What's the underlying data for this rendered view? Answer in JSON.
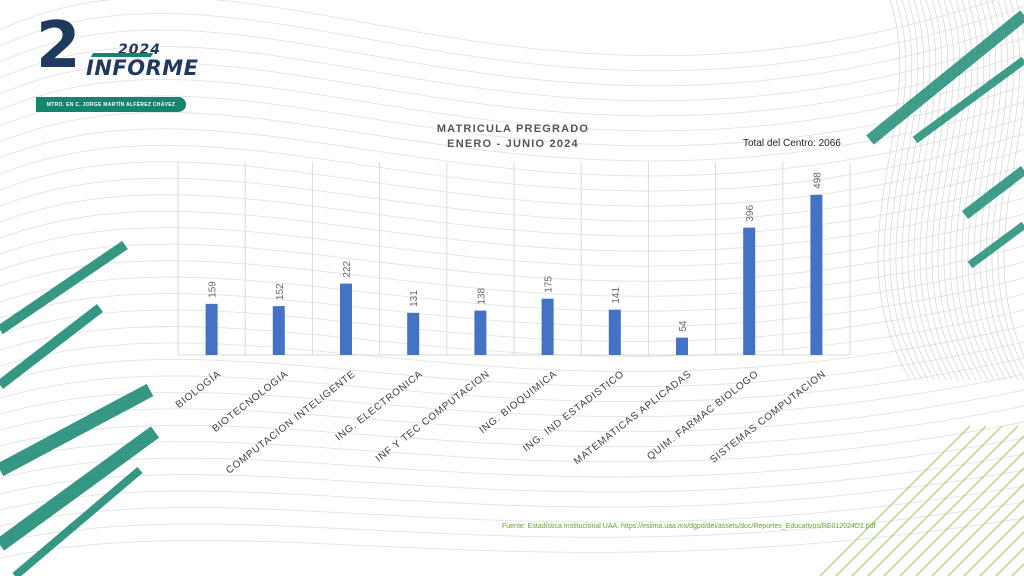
{
  "logo": {
    "number": "2",
    "year": "2024",
    "word": "INFORME",
    "ribbon": "MTRO. EN C. JORGE MARTÍN ALFÉREZ CHÁVEZ"
  },
  "total": "Total del Centro: 2066",
  "source": "Fuente: Estadística Institucional UAA. https://esiima.uaa.mx/dgpd/dei/assets/doc/Reportes_Educativos/RE012024D1.pdf",
  "colors": {
    "bar": "#4472c4",
    "accent": "#12866f",
    "navy": "#1f3a5c",
    "source": "#6aa12b"
  },
  "chart_data": {
    "type": "bar",
    "title": [
      "MATRICULA PREGRADO",
      "ENERO - JUNIO 2024"
    ],
    "categories": [
      "BIOLOGÍA",
      "BIOTECNOLOGIA",
      "COMPUTACION INTELIGENTE",
      "ING. ELECTRONICA",
      "INF Y TEC COMPUTACION",
      "ING. BIOQUIMICA",
      "ING. IND ESTADISTICO",
      "MATEMATICAS APLICADAS",
      "QUIM. FARMAC BIOLOGO",
      "SISTEMAS COMPUTACION"
    ],
    "values": [
      159,
      152,
      222,
      131,
      138,
      175,
      141,
      54,
      396,
      498
    ],
    "ylim": [
      0,
      600
    ],
    "grid": "vertical",
    "data_labels": true
  }
}
